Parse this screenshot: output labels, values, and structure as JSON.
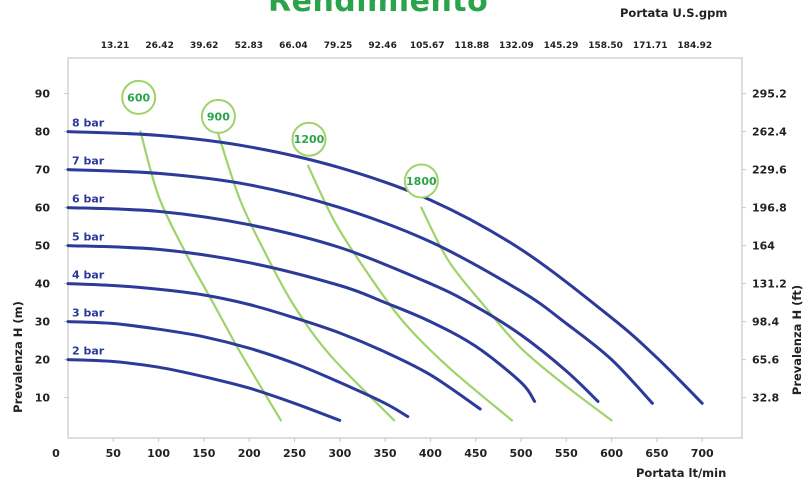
{
  "chart_data": {
    "type": "line",
    "title": "Rendimiento",
    "xlabel": "Portata  lt/min",
    "x2label": "Portata U.S.gpm",
    "ylabel": "Prevalenza H (m)",
    "y2label": "Prevalenza H (ft)",
    "xlim": [
      0,
      750
    ],
    "ylim": [
      0,
      95
    ],
    "x_ticks": [
      0,
      50,
      100,
      150,
      200,
      250,
      300,
      350,
      400,
      450,
      500,
      550,
      600,
      650,
      700
    ],
    "y_ticks": [
      10,
      20,
      30,
      40,
      50,
      60,
      70,
      80,
      90
    ],
    "x2_ticks": [
      "13.21",
      "26.42",
      "39.62",
      "52.83",
      "66.04",
      "79.25",
      "92.46",
      "105.67",
      "118.88",
      "132.09",
      "145.29",
      "158.50",
      "171.71",
      "184.92"
    ],
    "y2_ticks": [
      "32.8",
      "65.6",
      "98.4",
      "131.2",
      "164",
      "196.8",
      "229.6",
      "262.4",
      "295.2"
    ],
    "grid": false,
    "series": [
      {
        "name": "2 bar",
        "x": [
          0,
          50,
          100,
          150,
          200,
          250,
          300
        ],
        "y": [
          20,
          19.5,
          18,
          15.5,
          12.5,
          8.5,
          4
        ]
      },
      {
        "name": "3 bar",
        "x": [
          0,
          50,
          100,
          150,
          200,
          250,
          300,
          350,
          375
        ],
        "y": [
          30,
          29.5,
          28,
          26,
          23,
          19,
          14,
          8.5,
          5
        ]
      },
      {
        "name": "4 bar",
        "x": [
          0,
          50,
          100,
          150,
          200,
          250,
          300,
          350,
          400,
          455
        ],
        "y": [
          40,
          39.5,
          38.5,
          37,
          34.5,
          31,
          27,
          22,
          16,
          7
        ]
      },
      {
        "name": "5 bar",
        "x": [
          0,
          100,
          200,
          300,
          350,
          400,
          450,
          500,
          515
        ],
        "y": [
          50,
          49,
          45.5,
          39.5,
          35,
          30,
          23.5,
          14,
          9
        ]
      },
      {
        "name": "6 bar",
        "x": [
          0,
          100,
          200,
          300,
          400,
          450,
          500,
          550,
          585
        ],
        "y": [
          60,
          59,
          55.5,
          49.5,
          40,
          34,
          26.5,
          17,
          9
        ]
      },
      {
        "name": "7 bar",
        "x": [
          0,
          100,
          200,
          300,
          400,
          500,
          550,
          600,
          645
        ],
        "y": [
          70,
          69,
          66,
          60,
          51,
          38,
          29.5,
          20,
          8.5
        ]
      },
      {
        "name": "8 bar",
        "x": [
          0,
          100,
          200,
          300,
          400,
          500,
          600,
          650,
          700
        ],
        "y": [
          80,
          79,
          76,
          70.5,
          62,
          49,
          31,
          20.5,
          8.5
        ]
      }
    ],
    "iso_curves": [
      {
        "name": "600",
        "x": [
          80,
          100,
          130,
          160,
          190,
          235
        ],
        "y": [
          80,
          63,
          48,
          35,
          22,
          4
        ]
      },
      {
        "name": "900",
        "x": [
          165,
          190,
          220,
          250,
          290,
          360
        ],
        "y": [
          80,
          62,
          47,
          34,
          21,
          4
        ]
      },
      {
        "name": "1200",
        "x": [
          265,
          295,
          330,
          370,
          420,
          490
        ],
        "y": [
          71,
          56,
          43,
          30,
          18,
          4
        ]
      },
      {
        "name": "1800",
        "x": [
          390,
          420,
          460,
          500,
          550,
          600
        ],
        "y": [
          60,
          46,
          34,
          23,
          13,
          4
        ]
      }
    ],
    "iso_bubbles": [
      {
        "label": "600",
        "x": 78,
        "y": 89
      },
      {
        "label": "900",
        "x": 166,
        "y": 84
      },
      {
        "label": "1200",
        "x": 266,
        "y": 78
      },
      {
        "label": "1800",
        "x": 390,
        "y": 67
      }
    ],
    "colors": {
      "bar_curves": "#2c3a9a",
      "iso_curves": "#9fd36a",
      "iso_text": "#2aa34a",
      "axis": "#c8c8c8",
      "title": "#2aa34a"
    }
  }
}
